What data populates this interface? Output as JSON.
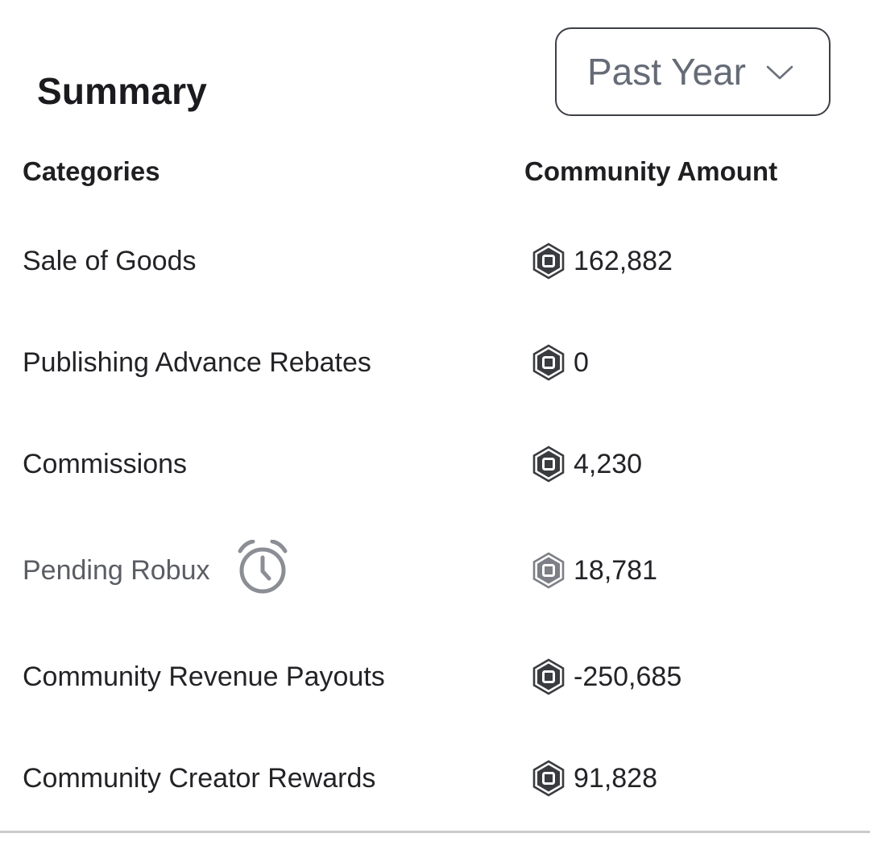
{
  "summary": {
    "title": "Summary",
    "period_select": {
      "value": "Past Year",
      "icon": "chevron-down-icon"
    }
  },
  "table": {
    "headers": {
      "categories": "Categories",
      "amount": "Community Amount"
    },
    "rows": [
      {
        "label": "Sale of Goods",
        "amount": "162,882"
      },
      {
        "label": "Publishing Advance Rebates",
        "amount": "0"
      },
      {
        "label": "Commissions",
        "amount": "4,230"
      },
      {
        "label": "Pending Robux",
        "amount": "18,781",
        "icon": "alarm-clock-icon",
        "pending": true
      },
      {
        "label": "Community Revenue Payouts",
        "amount": "-250,685"
      },
      {
        "label": "Community Creator Rewards",
        "amount": "91,828"
      }
    ],
    "currency_icon": "robux-icon"
  },
  "colors": {
    "text_primary": "#232327",
    "text_muted": "#5a5d63",
    "select_text": "#656b76",
    "robux_icon": "#3a3b3f",
    "pending_icon": "#7c7f85"
  }
}
